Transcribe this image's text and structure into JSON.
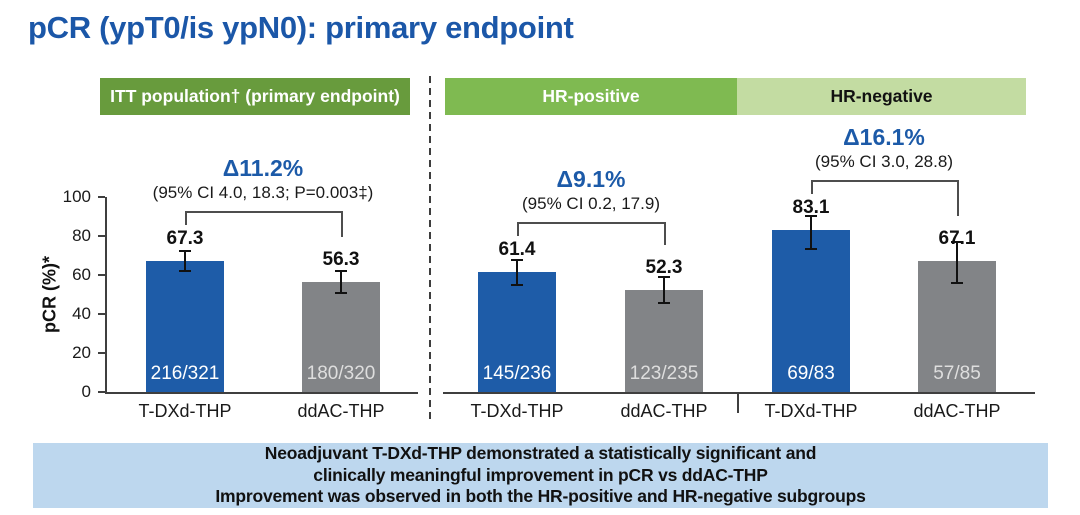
{
  "title": "pCR (ypT0/is ypN0): primary endpoint",
  "colors": {
    "title": "#1b57a8",
    "delta": "#1c5aa8",
    "bar_tdxd": "#1e5ca8",
    "bar_ddac": "#828487",
    "axis": "#3f3f3f",
    "bracket": "#4d4d4d",
    "error_bar": "#111111",
    "header_itt_bg": "#689b3d",
    "header_hrpos_bg": "#7fba51",
    "header_hrneg_bg": "#c3dca2",
    "header_text_light": "#ffffff",
    "header_text_dark": "#111111",
    "summary_bg": "#bdd7ee",
    "count_on_blue": "#ffffff",
    "count_on_gray": "#dedede"
  },
  "summary": {
    "lines": [
      "Neoadjuvant T-DXd-THP demonstrated a statistically significant and",
      "clinically meaningful improvement in pCR vs ddAC-THP",
      "Improvement was observed in both the HR-positive and HR-negative subgroups"
    ]
  },
  "chart_data": {
    "type": "bar",
    "title": "pCR (ypT0/is ypN0): primary endpoint",
    "ylabel": "pCR (%)*",
    "xlabel": "",
    "ylim": [
      0,
      100
    ],
    "yticks": [
      0,
      20,
      40,
      60,
      80,
      100
    ],
    "grid": false,
    "legend_position": "none",
    "series_names": [
      "T-DXd-THP",
      "ddAC-THP"
    ],
    "groups": [
      {
        "header": "ITT population† (primary endpoint)",
        "header_bg": "#689b3d",
        "header_fg": "#ffffff",
        "delta": "Δ11.2%",
        "ci_text": "(95% CI 4.0, 18.3; P=0.003‡)",
        "bars": [
          {
            "label": "T-DXd-THP",
            "value": 67.3,
            "count": "216/321",
            "err_low": 61.9,
            "err_high": 72.4
          },
          {
            "label": "ddAC-THP",
            "value": 56.3,
            "count": "180/320",
            "err_low": 50.7,
            "err_high": 61.8
          }
        ]
      },
      {
        "header": "HR-positive",
        "header_bg": "#7fba51",
        "header_fg": "#ffffff",
        "delta": "Δ9.1%",
        "ci_text": "(95% CI 0.2, 17.9)",
        "bars": [
          {
            "label": "T-DXd-THP",
            "value": 61.4,
            "count": "145/236",
            "err_low": 55.0,
            "err_high": 67.5
          },
          {
            "label": "ddAC-THP",
            "value": 52.3,
            "count": "123/235",
            "err_low": 45.7,
            "err_high": 58.9
          }
        ]
      },
      {
        "header": "HR-negative",
        "header_bg": "#c3dca2",
        "header_fg": "#111111",
        "delta": "Δ16.1%",
        "ci_text": "(95% CI 3.0, 28.8)",
        "bars": [
          {
            "label": "T-DXd-THP",
            "value": 83.1,
            "count": "69/83",
            "err_low": 73.3,
            "err_high": 90.5
          },
          {
            "label": "ddAC-THP",
            "value": 67.1,
            "count": "57/85",
            "err_low": 56.0,
            "err_high": 76.7
          }
        ]
      }
    ]
  }
}
